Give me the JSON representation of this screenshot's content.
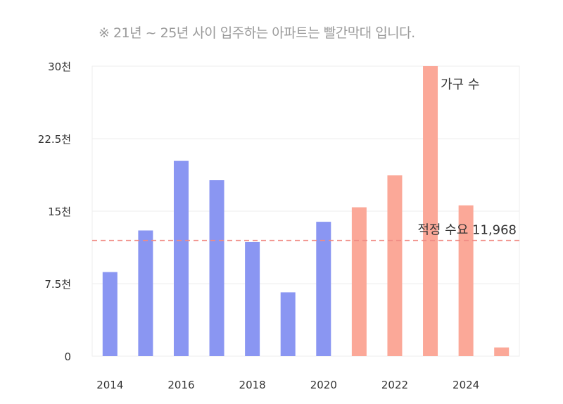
{
  "note": "※ 21년 ~ 25년 사이 입주하는 아파트는 빨간막대 입니다.",
  "colors": {
    "blue": "#8a96f2",
    "red": "#fba898",
    "ref": "#f08a84",
    "grid": "#eeeeee",
    "text": "#333333"
  },
  "chart_data": {
    "type": "bar",
    "categories": [
      "2014",
      "2015",
      "2016",
      "2017",
      "2018",
      "2019",
      "2020",
      "2021",
      "2022",
      "2023",
      "2024",
      "2025"
    ],
    "x_tick_labels": [
      "2014",
      "2016",
      "2018",
      "2020",
      "2022",
      "2024"
    ],
    "series": [
      {
        "name": "가구 수",
        "values": [
          8700,
          13000,
          20200,
          18200,
          11800,
          6600,
          13900,
          15400,
          18700,
          30000,
          15600,
          900
        ]
      }
    ],
    "highlight_categories": [
      "2021",
      "2022",
      "2023",
      "2024",
      "2025"
    ],
    "y_ticks": [
      0,
      7500,
      15000,
      22500,
      30000
    ],
    "y_tick_labels": [
      "0",
      "7.5천",
      "15천",
      "22.5천",
      "30천"
    ],
    "ylim": [
      0,
      30000
    ],
    "reference_line": {
      "value": 11968,
      "label": "적정 수요 11,968"
    },
    "grid": true
  }
}
